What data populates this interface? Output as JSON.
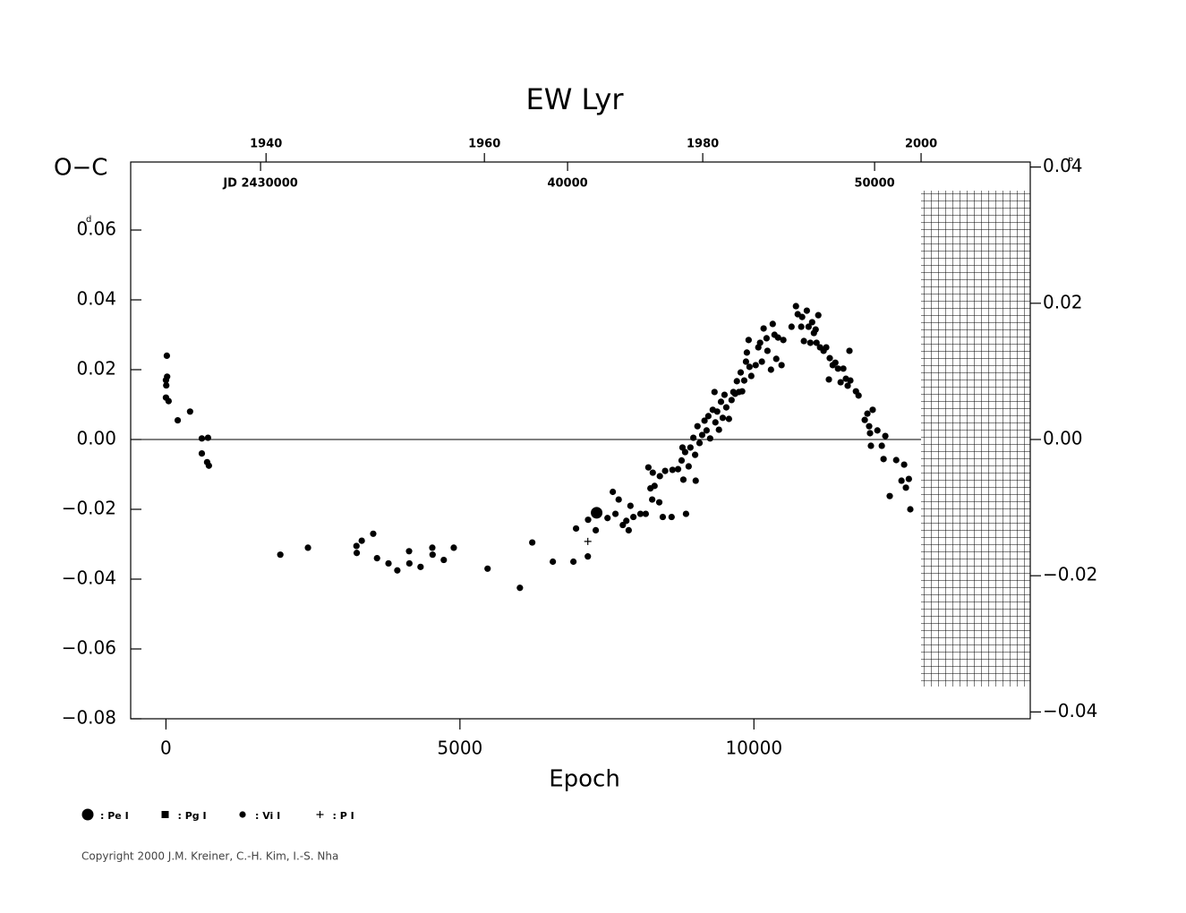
{
  "chart_data": {
    "type": "scatter",
    "title": "EW  Lyr",
    "y_label": "O−C",
    "y_unit": "d",
    "y2_unit": "P",
    "x_label": "Epoch",
    "copyright": "Copyright 2000 J.M. Kreiner, C.-H. Kim, I.-S. Nha",
    "xlim": [
      -600,
      14700
    ],
    "xticks": [
      0,
      5000,
      10000
    ],
    "ylim": [
      -0.08,
      0.08
    ],
    "yticks": [
      {
        "value": -0.08,
        "label": "−0.08"
      },
      {
        "value": -0.06,
        "label": "−0.06"
      },
      {
        "value": -0.04,
        "label": "−0.04"
      },
      {
        "value": -0.02,
        "label": "−0.02"
      },
      {
        "value": 0,
        "label": "0.00"
      },
      {
        "value": 0.02,
        "label": "0.02"
      },
      {
        "value": 0.04,
        "label": "0.04"
      },
      {
        "value": 0.06,
        "label": "0.06"
      }
    ],
    "y2lim": [
      -0.041,
      0.041
    ],
    "y2ticks": [
      {
        "value": -0.04,
        "label": "−0.04"
      },
      {
        "value": -0.02,
        "label": "−0.02"
      },
      {
        "value": 0,
        "label": "0.00"
      },
      {
        "value": 0.02,
        "label": "0.02"
      },
      {
        "value": 0.04,
        "label": "0.04"
      }
    ],
    "year_lim": [
      1927.6,
      2010
    ],
    "year_ticks": [
      1940,
      1960,
      1980,
      2000
    ],
    "jd_lim": [
      25770,
      55070
    ],
    "jd_ticks": [
      {
        "value": 30000,
        "label": "JD  2430000"
      },
      {
        "value": 40000,
        "label": "40000"
      },
      {
        "value": 50000,
        "label": "50000"
      }
    ],
    "hline": 0,
    "series": [
      {
        "name": ": Pe I",
        "marker": "big",
        "color": "#000",
        "x": [
          7325
        ],
        "values": [
          -0.021
        ]
      },
      {
        "name": ": Pg I",
        "marker": "square",
        "color": "#000",
        "x": [],
        "values": []
      },
      {
        "name": ": Vi I",
        "marker": "dot",
        "color": "#000",
        "x": [
          0,
          15,
          20,
          5,
          0,
          45,
          200,
          410,
          610,
          715,
          610,
          700,
          730,
          1945,
          2415,
          3240,
          3245,
          3330,
          3525,
          3590,
          3785,
          3935,
          4135,
          4140,
          4330,
          4530,
          4535,
          4725,
          4895,
          5470,
          6020,
          6230,
          6580,
          6930,
          6975,
          7175,
          7180,
          7310,
          7510,
          7600,
          7700,
          7645,
          7770,
          7830,
          7870,
          7900,
          7950,
          8070,
          8160,
          8205,
          8240,
          8270,
          8280,
          8310,
          8390,
          8400,
          8450,
          8490,
          8600,
          8615,
          8710,
          8770,
          8785,
          8800,
          8830,
          8845,
          8890,
          8920,
          8970,
          9000,
          9010,
          9040,
          9075,
          9120,
          9160,
          9195,
          9225,
          9255,
          9300,
          9330,
          9345,
          9375,
          9405,
          9440,
          9470,
          9500,
          9530,
          9575,
          9620,
          9650,
          9680,
          9710,
          9745,
          9775,
          9800,
          9835,
          9865,
          9880,
          9910,
          9925,
          9955,
          10030,
          10075,
          10105,
          10135,
          10165,
          10215,
          10230,
          10290,
          10320,
          10350,
          10380,
          10410,
          10470,
          10500,
          10640,
          10715,
          10745,
          10805,
          10820,
          10850,
          10900,
          10930,
          10960,
          10990,
          11020,
          11050,
          11065,
          11095,
          11125,
          11185,
          11230,
          11275,
          11290,
          11340,
          11385,
          11430,
          11475,
          11520,
          11565,
          11595,
          11625,
          11640,
          11735,
          11780,
          11885,
          11930,
          11960,
          11975,
          11990,
          12020,
          12100,
          12175,
          12205,
          12235,
          12310,
          12420,
          12510,
          12555,
          12585,
          12635,
          12660
        ],
        "values": [
          0.017,
          0.024,
          0.018,
          0.0155,
          0.012,
          0.011,
          0.0055,
          0.008,
          0.0003,
          0.0005,
          -0.004,
          -0.0065,
          -0.0075,
          -0.033,
          -0.031,
          -0.0305,
          -0.0325,
          -0.029,
          -0.027,
          -0.034,
          -0.0355,
          -0.0375,
          -0.032,
          -0.0355,
          -0.0365,
          -0.031,
          -0.033,
          -0.0345,
          -0.031,
          -0.037,
          -0.0425,
          -0.0295,
          -0.035,
          -0.035,
          -0.0255,
          -0.0335,
          -0.023,
          -0.026,
          -0.0225,
          -0.015,
          -0.0172,
          -0.0213,
          -0.0245,
          -0.0233,
          -0.026,
          -0.019,
          -0.0222,
          -0.0213,
          -0.0213,
          -0.008,
          -0.014,
          -0.0172,
          -0.0095,
          -0.0133,
          -0.018,
          -0.0105,
          -0.0222,
          -0.009,
          -0.0222,
          -0.0087,
          -0.0085,
          -0.006,
          -0.0023,
          -0.0115,
          -0.0036,
          -0.0213,
          -0.0077,
          -0.0023,
          0.0005,
          -0.0044,
          -0.0118,
          0.0038,
          -0.001,
          0.0013,
          0.0054,
          0.0026,
          0.0067,
          0.0003,
          0.0085,
          0.0136,
          0.0049,
          0.008,
          0.0028,
          0.0108,
          0.0062,
          0.0128,
          0.0092,
          0.0059,
          0.0113,
          0.0136,
          0.0131,
          0.0167,
          0.0136,
          0.0192,
          0.0138,
          0.0169,
          0.0223,
          0.0249,
          0.0285,
          0.0208,
          0.0182,
          0.0213,
          0.0264,
          0.0277,
          0.0223,
          0.0318,
          0.029,
          0.0254,
          0.02,
          0.0331,
          0.03,
          0.0231,
          0.0292,
          0.0213,
          0.0285,
          0.0323,
          0.0382,
          0.0359,
          0.0323,
          0.0351,
          0.0282,
          0.0369,
          0.0323,
          0.0277,
          0.0336,
          0.0305,
          0.0315,
          0.0277,
          0.0356,
          0.0264,
          0.0254,
          0.0264,
          0.0172,
          0.0233,
          0.0213,
          0.022,
          0.0203,
          0.0164,
          0.0203,
          0.0174,
          0.0154,
          0.0254,
          0.0169,
          0.0138,
          0.0126,
          0.0056,
          0.0074,
          0.0038,
          0.0018,
          -0.0018,
          0.0085,
          0.0026,
          -0.0018,
          -0.0056,
          0.001,
          -0.0162,
          -0.0059,
          -0.0118,
          -0.0072,
          -0.0138,
          -0.0113,
          -0.02
        ]
      },
      {
        "name": ": P I",
        "marker": "plus",
        "color": "#000",
        "x": [
          7175
        ],
        "values": [
          -0.0292
        ]
      }
    ]
  }
}
